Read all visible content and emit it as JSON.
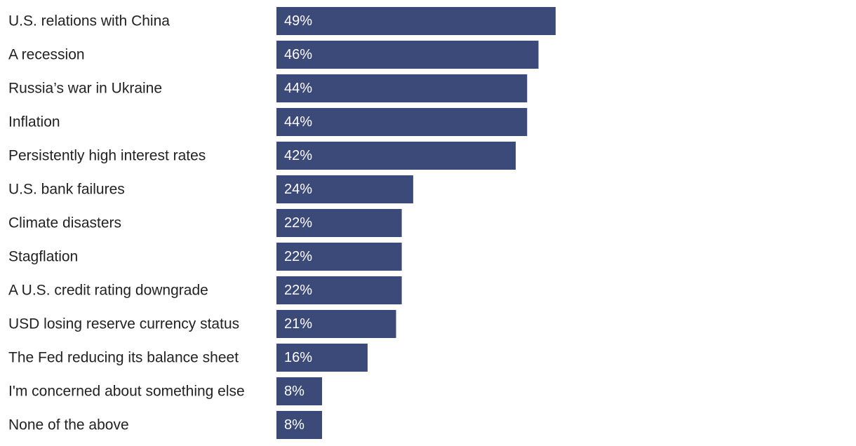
{
  "colors": {
    "bar": "#3c4a7a",
    "label_text": "#222222",
    "value_text": "#ffffff",
    "background": "#ffffff"
  },
  "chart_data": {
    "type": "bar",
    "orientation": "horizontal",
    "title": "",
    "xlabel": "",
    "ylabel": "",
    "xlim": [
      0,
      100
    ],
    "value_suffix": "%",
    "grid": false,
    "categories": [
      "U.S. relations with China",
      "A recession",
      "Russia’s war in Ukraine",
      "Inflation",
      "Persistently high interest rates",
      "U.S. bank failures",
      "Climate disasters",
      "Stagflation",
      "A U.S. credit rating downgrade",
      "USD losing reserve currency status",
      "The Fed reducing its balance sheet",
      "I'm concerned about something else",
      "None of the above"
    ],
    "values": [
      49,
      46,
      44,
      44,
      42,
      24,
      22,
      22,
      22,
      21,
      16,
      8,
      8
    ]
  }
}
